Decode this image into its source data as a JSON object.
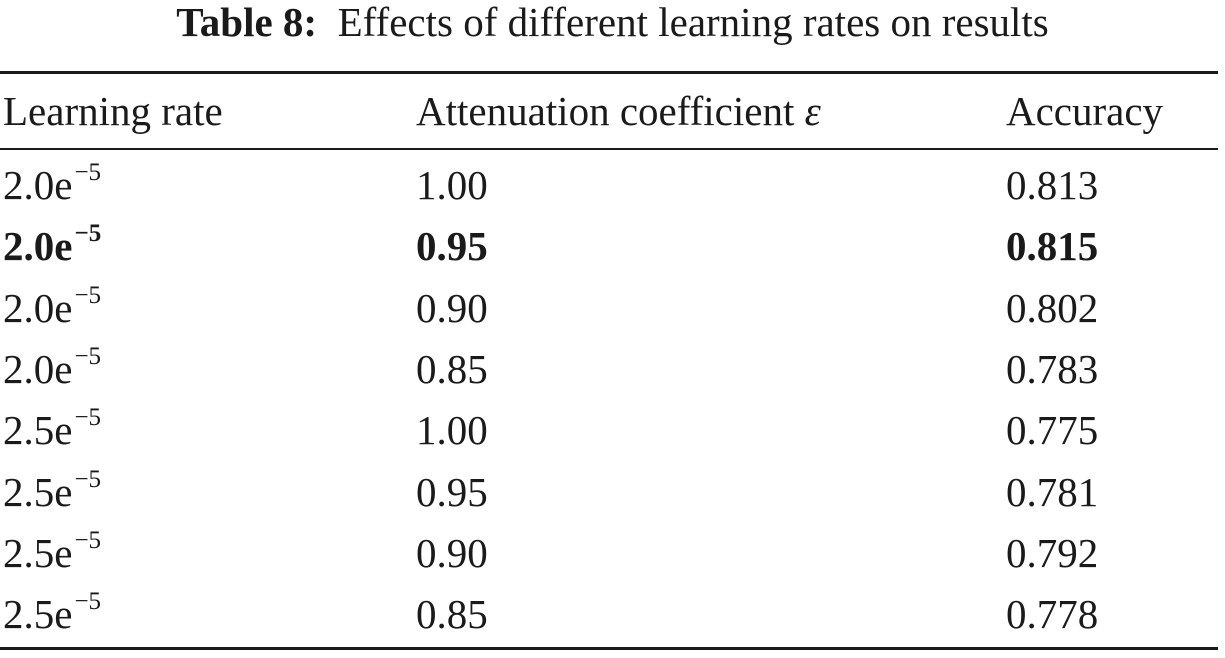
{
  "caption": {
    "label": "Table 8:",
    "text": "Effects of different learning rates on results"
  },
  "table": {
    "columns": [
      "Learning rate",
      "Attenuation coefficient ",
      "Accuracy"
    ],
    "epsilon_symbol": "ε",
    "rows": [
      {
        "lr_base": "2.0e",
        "lr_exp": "−5",
        "coef": "1.00",
        "acc": "0.813",
        "bold": false
      },
      {
        "lr_base": "2.0e",
        "lr_exp": "−5",
        "coef": "0.95",
        "acc": "0.815",
        "bold": true
      },
      {
        "lr_base": "2.0e",
        "lr_exp": "−5",
        "coef": "0.90",
        "acc": "0.802",
        "bold": false
      },
      {
        "lr_base": "2.0e",
        "lr_exp": "−5",
        "coef": "0.85",
        "acc": "0.783",
        "bold": false
      },
      {
        "lr_base": "2.5e",
        "lr_exp": "−5",
        "coef": "1.00",
        "acc": "0.775",
        "bold": false
      },
      {
        "lr_base": "2.5e",
        "lr_exp": "−5",
        "coef": "0.95",
        "acc": "0.781",
        "bold": false
      },
      {
        "lr_base": "2.5e",
        "lr_exp": "−5",
        "coef": "0.90",
        "acc": "0.792",
        "bold": false
      },
      {
        "lr_base": "2.5e",
        "lr_exp": "−5",
        "coef": "0.85",
        "acc": "0.778",
        "bold": false
      }
    ]
  }
}
